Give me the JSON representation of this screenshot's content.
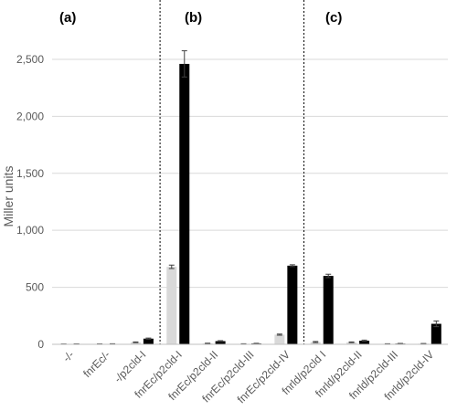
{
  "chart_data": {
    "type": "bar",
    "ylabel": "Miller units",
    "ylim": [
      0,
      2700
    ],
    "yticks": [
      0,
      500,
      1000,
      1500,
      2000,
      2500
    ],
    "ytick_labels": [
      "0",
      "500",
      "1,000",
      "1,500",
      "2,000",
      "2,500"
    ],
    "grid": true,
    "panel_labels": [
      "(a)",
      "(b)",
      "(c)"
    ],
    "categories": [
      "-/-",
      "fnrEc/-",
      "-/p2cld-I",
      "fnrEc/p2cld-I",
      "fnrEc/p2cld-II",
      "fnrEc/p2cld-III",
      "fnrEc/p2cld-IV",
      "fnrld/p2cld I",
      "fnrld/p2cld-II",
      "fnrld/p2cld-III",
      "fnrld/p2cld-IV"
    ],
    "series": [
      {
        "color": "#d9d9d9",
        "values": [
          2,
          3,
          18,
          680,
          8,
          4,
          85,
          20,
          18,
          4,
          6
        ],
        "errors": [
          1,
          1,
          3,
          15,
          2,
          1,
          5,
          5,
          3,
          1,
          1
        ]
      },
      {
        "color": "#000000",
        "values": [
          3,
          4,
          50,
          2460,
          28,
          7,
          690,
          600,
          32,
          6,
          180
        ],
        "errors": [
          1,
          1,
          5,
          115,
          4,
          2,
          8,
          15,
          5,
          2,
          25
        ]
      }
    ],
    "dividers_after_category": [
      2,
      6
    ]
  }
}
